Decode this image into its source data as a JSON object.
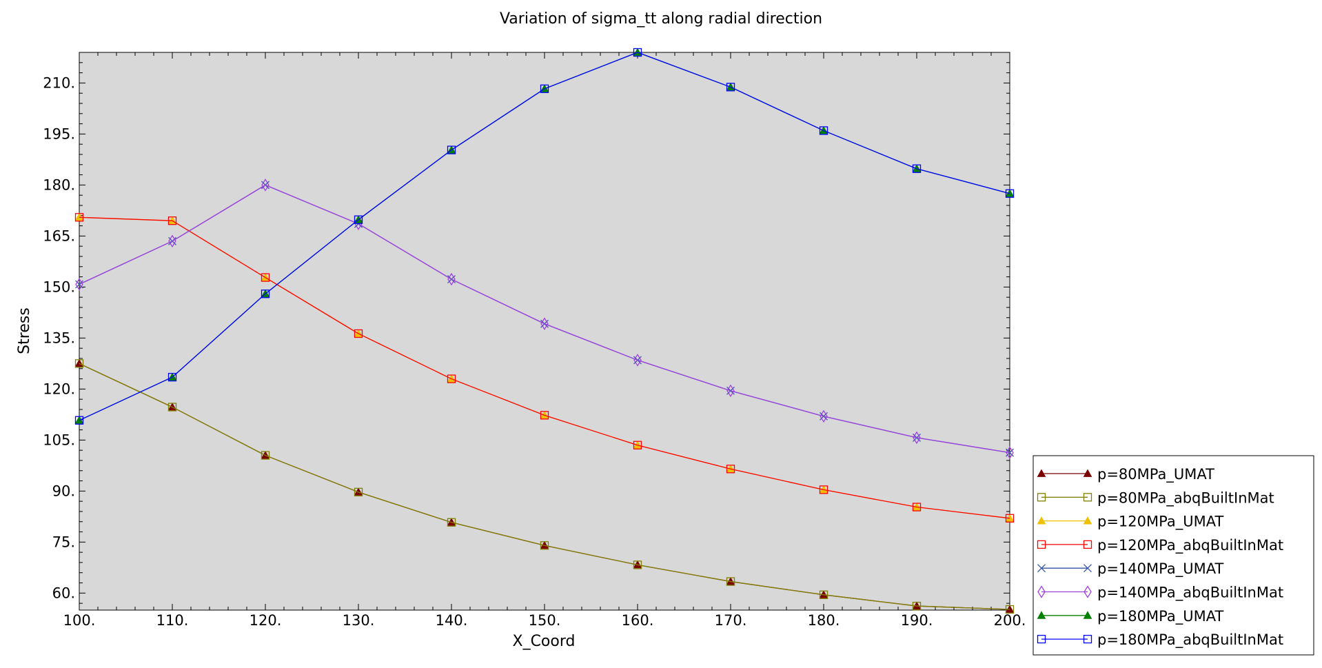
{
  "chart_data": {
    "type": "line",
    "title": "Variation of sigma_tt along radial direction",
    "xlabel": "X_Coord",
    "ylabel": "Stress",
    "xlim": [
      100,
      200
    ],
    "ylim": [
      55,
      219
    ],
    "x_ticks": [
      100,
      110,
      120,
      130,
      140,
      150,
      160,
      170,
      180,
      190,
      200
    ],
    "x_tick_labels": [
      "100.",
      "110.",
      "120.",
      "130.",
      "140.",
      "150.",
      "160.",
      "170.",
      "180.",
      "190.",
      "200."
    ],
    "y_ticks": [
      60,
      75,
      90,
      105,
      120,
      135,
      150,
      165,
      180,
      195,
      210
    ],
    "y_tick_labels": [
      "60.",
      "75.",
      "90.",
      "105.",
      "120.",
      "135.",
      "150.",
      "165.",
      "180.",
      "195.",
      "210."
    ],
    "grid": false,
    "plot_background": "#d8d8d8",
    "legend_position": "bottom-right",
    "x": [
      100,
      110,
      120,
      130,
      140,
      150,
      160,
      170,
      180,
      190,
      200
    ],
    "series": [
      {
        "name": "p=80MPa_UMAT",
        "color": "#7b0000",
        "marker": "triangle-filled",
        "values": [
          127.5,
          114.7,
          100.5,
          89.7,
          80.8,
          74.0,
          68.3,
          63.4,
          59.5,
          56.2,
          55.2
        ]
      },
      {
        "name": "p=80MPa_abqBuiltInMat",
        "color": "#808000",
        "marker": "square-open",
        "values": [
          127.5,
          114.7,
          100.5,
          89.7,
          80.8,
          74.0,
          68.3,
          63.4,
          59.5,
          56.2,
          55.2
        ]
      },
      {
        "name": "p=120MPa_UMAT",
        "color": "#f0c000",
        "marker": "triangle-filled",
        "values": [
          170.5,
          169.5,
          152.8,
          136.3,
          123.0,
          112.3,
          103.5,
          96.5,
          90.4,
          85.3,
          82.0
        ]
      },
      {
        "name": "p=120MPa_abqBuiltInMat",
        "color": "#ff0000",
        "marker": "square-open",
        "values": [
          170.5,
          169.5,
          152.8,
          136.3,
          123.0,
          112.3,
          103.5,
          96.5,
          90.4,
          85.3,
          82.0
        ]
      },
      {
        "name": "p=140MPa_UMAT",
        "color": "#3355aa",
        "marker": "x",
        "values": [
          150.8,
          163.5,
          180.0,
          168.6,
          152.3,
          139.2,
          128.5,
          119.5,
          112.0,
          105.7,
          101.3
        ]
      },
      {
        "name": "p=140MPa_abqBuiltInMat",
        "color": "#a040e0",
        "marker": "diamond-open",
        "values": [
          150.8,
          163.5,
          180.0,
          168.6,
          152.3,
          139.2,
          128.5,
          119.5,
          112.0,
          105.7,
          101.3
        ]
      },
      {
        "name": "p=180MPa_UMAT",
        "color": "#008000",
        "marker": "triangle-filled",
        "values": [
          110.8,
          123.5,
          148.0,
          169.8,
          190.3,
          208.3,
          219.0,
          208.8,
          196.0,
          184.8,
          177.5
        ]
      },
      {
        "name": "p=180MPa_abqBuiltInMat",
        "color": "#0000ff",
        "marker": "square-open",
        "values": [
          110.8,
          123.5,
          148.0,
          169.8,
          190.3,
          208.3,
          219.0,
          208.8,
          196.0,
          184.8,
          177.5
        ]
      }
    ]
  }
}
